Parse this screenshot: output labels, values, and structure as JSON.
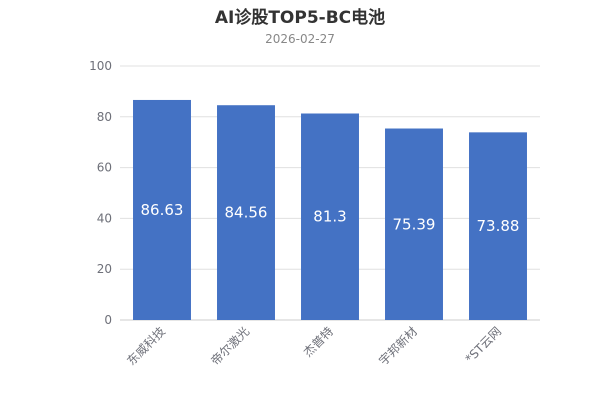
{
  "chart_data": {
    "type": "bar",
    "title": "AI诊股TOP5-BC电池",
    "subtitle": "2026-02-27",
    "categories": [
      "东威科技",
      "帝尔激光",
      "杰普特",
      "宇邦新材",
      "*ST云网"
    ],
    "values": [
      86.63,
      84.56,
      81.3,
      75.39,
      73.88
    ],
    "data_labels": [
      "86.63",
      "84.56",
      "81.3",
      "75.39",
      "73.88"
    ],
    "ylim": [
      0,
      100
    ],
    "yticks": [
      0,
      20,
      40,
      60,
      80,
      100
    ],
    "grid": true,
    "legend": "none",
    "bar_color": "#4472c4",
    "grid_color": "#e0e0e0",
    "axis_color": "#cccccc"
  }
}
